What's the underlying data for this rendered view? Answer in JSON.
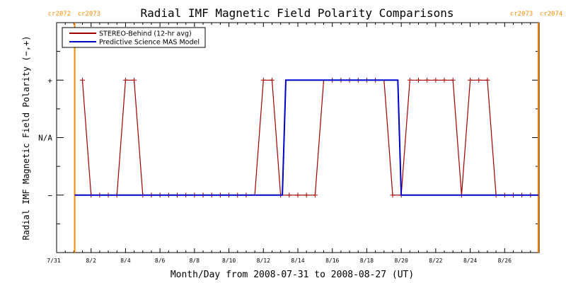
{
  "chart_data": {
    "type": "line",
    "title": "Radial IMF Magnetic Field Polarity Comparisons",
    "xlabel": "Month/Day from 2008-07-31 to 2008-08-27 (UT)",
    "ylabel": "Radial IMF Magnetic Field Polarity (−,+)",
    "x_units": "days after 2008-07-31 00:00 UT",
    "xlim": [
      0,
      28
    ],
    "ylim": [
      -2,
      2
    ],
    "x_ticks": [
      {
        "x": 0,
        "label": "7/31"
      },
      {
        "x": 2,
        "label": "8/2"
      },
      {
        "x": 4,
        "label": "8/4"
      },
      {
        "x": 6,
        "label": "8/6"
      },
      {
        "x": 8,
        "label": "8/8"
      },
      {
        "x": 10,
        "label": "8/10"
      },
      {
        "x": 12,
        "label": "8/12"
      },
      {
        "x": 14,
        "label": "8/14"
      },
      {
        "x": 16,
        "label": "8/16"
      },
      {
        "x": 18,
        "label": "8/18"
      },
      {
        "x": 20,
        "label": "8/20"
      },
      {
        "x": 22,
        "label": "8/22"
      },
      {
        "x": 24,
        "label": "8/24"
      },
      {
        "x": 26,
        "label": "8/26"
      }
    ],
    "y_ticks": [
      {
        "y": 1,
        "label": "+"
      },
      {
        "y": 0,
        "label": "N/A"
      },
      {
        "y": -1,
        "label": "−"
      }
    ],
    "rotation_markers": [
      {
        "x": 1.05,
        "left_label": "cr2072",
        "right_label": "cr2073",
        "side": "left",
        "color": "#ff8c00"
      },
      {
        "x": 27.95,
        "left_label": "cr2073",
        "right_label": "cr2074",
        "side": "right",
        "color": "#ff8c00"
      }
    ],
    "series": [
      {
        "name": "STEREO-Behind (12-hr avg)",
        "color": "#a00000",
        "marker": "plus",
        "x": [
          1.5,
          2.0,
          2.5,
          3.0,
          3.5,
          4.0,
          4.5,
          5.0,
          5.5,
          6.0,
          6.5,
          7.0,
          7.5,
          8.0,
          8.5,
          9.0,
          9.5,
          10.0,
          10.5,
          11.0,
          11.5,
          12.0,
          12.5,
          13.0,
          13.5,
          14.0,
          14.5,
          15.0,
          15.5,
          16.0,
          16.5,
          17.0,
          17.5,
          18.0,
          18.5,
          19.0,
          19.5,
          20.0,
          20.5,
          21.0,
          21.5,
          22.0,
          22.5,
          23.0,
          23.5,
          24.0,
          24.5,
          25.0,
          25.5,
          26.0,
          26.5,
          27.0,
          27.5
        ],
        "y": [
          1,
          -1,
          -1,
          -1,
          -1,
          1,
          1,
          -1,
          -1,
          -1,
          -1,
          -1,
          -1,
          -1,
          -1,
          -1,
          -1,
          -1,
          -1,
          -1,
          -1,
          1,
          1,
          -1,
          -1,
          -1,
          -1,
          -1,
          1,
          1,
          1,
          1,
          1,
          1,
          1,
          1,
          -1,
          -1,
          1,
          1,
          1,
          1,
          1,
          1,
          -1,
          1,
          1,
          1,
          -1,
          -1,
          -1,
          -1,
          -1
        ],
        "markers_shown": [
          true,
          true,
          true,
          true,
          true,
          true,
          true,
          true,
          true,
          true,
          true,
          true,
          true,
          true,
          true,
          true,
          true,
          true,
          true,
          true,
          false,
          true,
          true,
          true,
          true,
          true,
          true,
          true,
          false,
          true,
          true,
          true,
          true,
          true,
          true,
          false,
          true,
          true,
          true,
          true,
          true,
          true,
          true,
          true,
          true,
          true,
          true,
          true,
          true,
          true,
          true,
          true,
          true
        ]
      },
      {
        "name": "Predictive Science MAS Model",
        "color": "#0000c8",
        "marker": "none",
        "x": [
          1.05,
          13.1,
          13.3,
          19.8,
          20.0,
          27.95
        ],
        "y": [
          -1,
          -1,
          1,
          1,
          -1,
          -1
        ]
      }
    ],
    "legend": "top-left",
    "grid": false
  }
}
